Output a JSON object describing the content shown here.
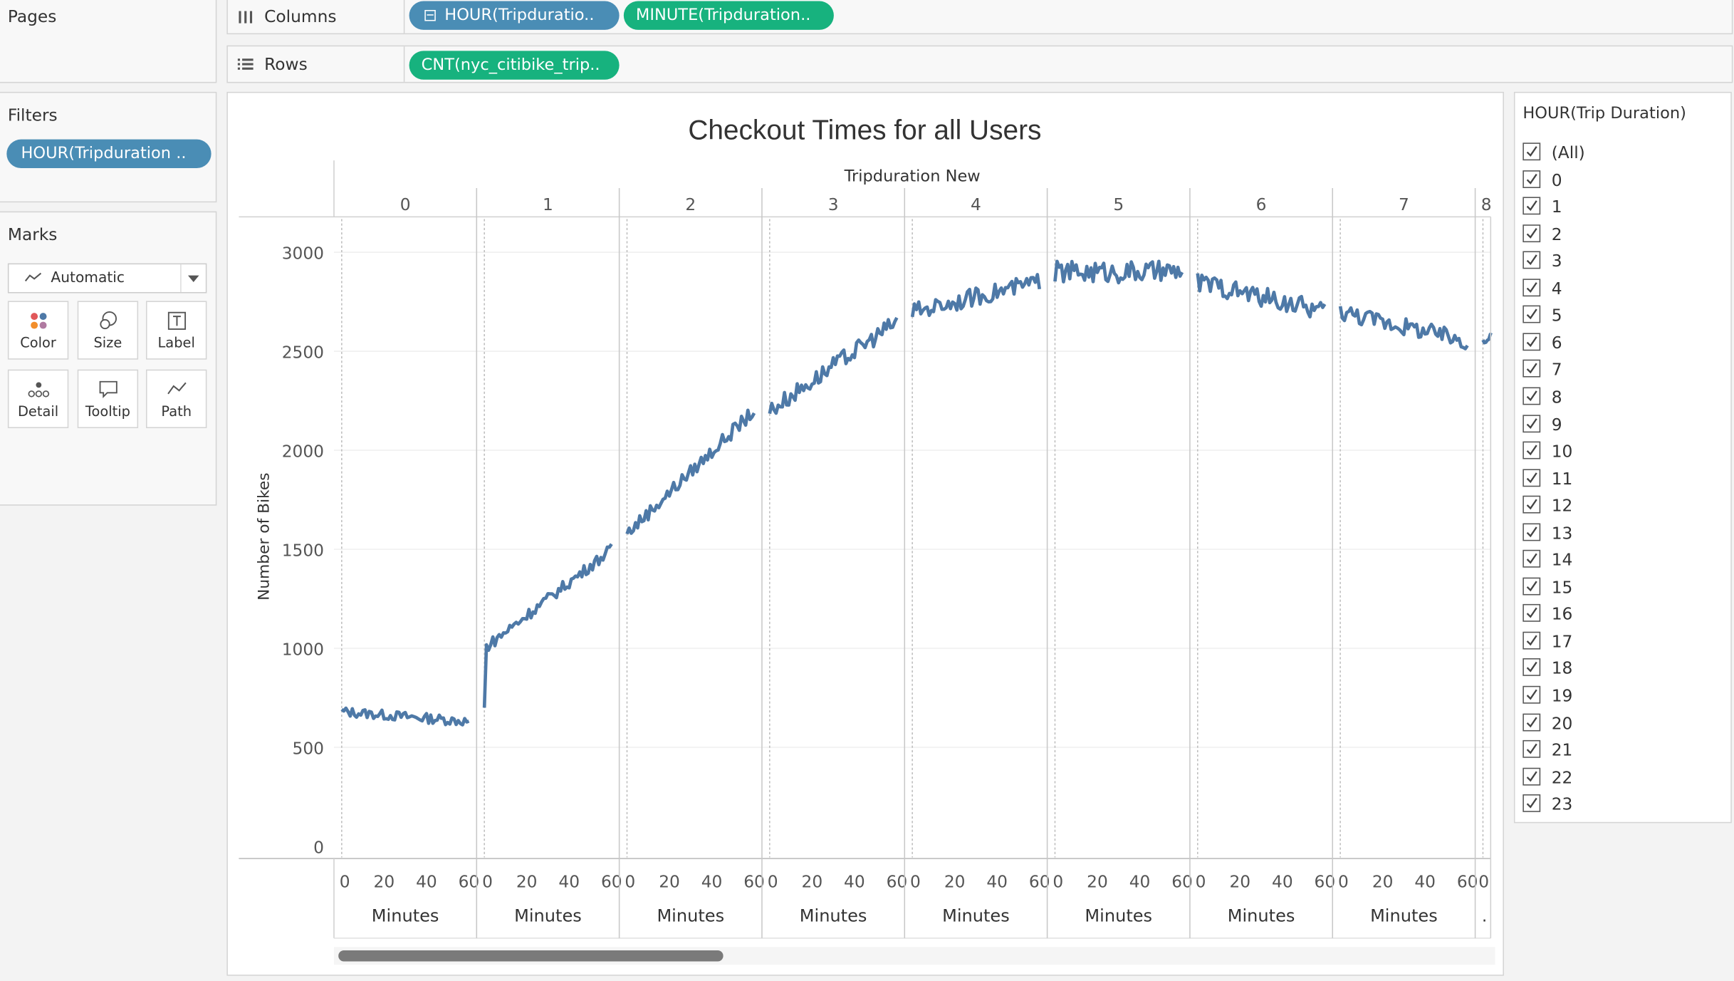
{
  "shelves": {
    "pages_label": "Pages",
    "columns_label": "Columns",
    "rows_label": "Rows",
    "columns_pills": [
      "HOUR(Tripduratio..",
      "MINUTE(Tripduration.."
    ],
    "rows_pills": [
      "CNT(nyc_citibike_trip.."
    ]
  },
  "filters": {
    "title": "Filters",
    "pill": "HOUR(Tripduration .."
  },
  "marks": {
    "title": "Marks",
    "type_selected": "Automatic",
    "buttons": [
      "Color",
      "Size",
      "Label",
      "Detail",
      "Tooltip",
      "Path"
    ]
  },
  "colors": {
    "line": "#4e79a7",
    "pill_blue": "#4a8db5",
    "pill_green": "#17b27e"
  },
  "legend": {
    "title": "HOUR(Trip Duration)",
    "items": [
      "(All)",
      "0",
      "1",
      "2",
      "3",
      "4",
      "5",
      "6",
      "7",
      "8",
      "9",
      "10",
      "11",
      "12",
      "13",
      "14",
      "15",
      "16",
      "17",
      "18",
      "19",
      "20",
      "21",
      "22",
      "23"
    ],
    "checked": true
  },
  "chart_data": {
    "type": "line",
    "title": "Checkout Times for all Users",
    "column_header": "Tripduration New",
    "ylabel": "Number of Bikes",
    "ylim": [
      0,
      3100
    ],
    "yticks": [
      0,
      500,
      1000,
      1500,
      2000,
      2500,
      3000
    ],
    "xlabel_per_pane": "Minutes",
    "x_ticks": [
      "0",
      "20",
      "40",
      "60"
    ],
    "xlim": [
      0,
      60
    ],
    "panes": [
      {
        "hour": "0",
        "start": 680,
        "end": 630,
        "noise": 25
      },
      {
        "hour": "1",
        "start": 1000,
        "end": 1500,
        "noise": 30
      },
      {
        "hour": "2",
        "start": 1580,
        "end": 2200,
        "noise": 35
      },
      {
        "hour": "3",
        "start": 2200,
        "end": 2650,
        "noise": 45
      },
      {
        "hour": "4",
        "start": 2700,
        "end": 2850,
        "noise": 45
      },
      {
        "hour": "5",
        "start": 2900,
        "end": 2900,
        "noise": 55
      },
      {
        "hour": "6",
        "start": 2850,
        "end": 2700,
        "noise": 50
      },
      {
        "hour": "7",
        "start": 2700,
        "end": 2550,
        "noise": 45
      },
      {
        "hour": "8",
        "start": 2550,
        "end": 2570,
        "noise": 20
      }
    ]
  }
}
